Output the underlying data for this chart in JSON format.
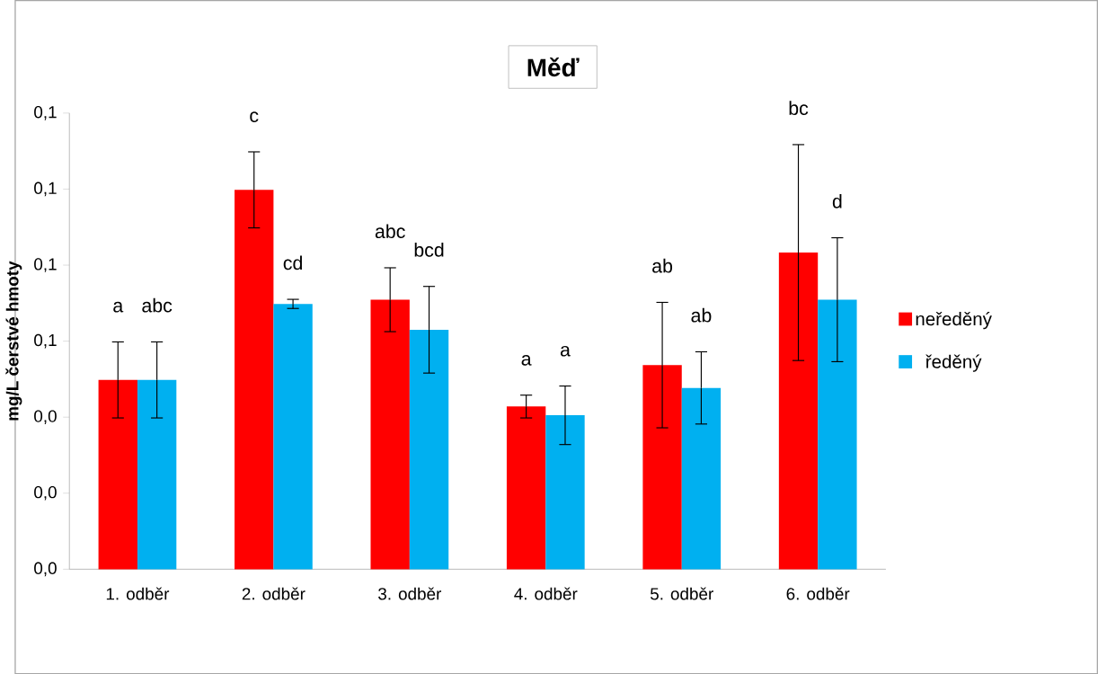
{
  "chart_data": {
    "type": "bar",
    "title": "Měď",
    "ylabel": "mg/L čerstvé hmoty",
    "categories": [
      "1. odběr",
      "2. odběr",
      "3. odběr",
      "4. odběr",
      "5. odběr",
      "6. odběr"
    ],
    "series": [
      {
        "name": "neředěný",
        "color": "#ff0000",
        "values": [
          0.0498,
          0.0998,
          0.0709,
          0.0428,
          0.0537,
          0.0833
        ],
        "errors": [
          0.01,
          0.01,
          0.0084,
          0.003,
          0.0165,
          0.0284
        ]
      },
      {
        "name": "ředěný",
        "color": "#00b0f0",
        "values": [
          0.0498,
          0.0698,
          0.063,
          0.0405,
          0.0477,
          0.0709
        ],
        "errors": [
          0.01,
          0.0012,
          0.0114,
          0.0077,
          0.0095,
          0.0163
        ]
      }
    ],
    "ylim": [
      0,
      0.12
    ],
    "yticks": [
      {
        "value": 0,
        "label": "0,0"
      },
      {
        "value": 0.02,
        "label": "0,0"
      },
      {
        "value": 0.04,
        "label": "0,0"
      },
      {
        "value": 0.06,
        "label": "0,1"
      },
      {
        "value": 0.08,
        "label": "0,1"
      },
      {
        "value": 0.1,
        "label": "0,1"
      },
      {
        "value": 0.12,
        "label": "0,1"
      }
    ],
    "annotations": [
      "a",
      "abc",
      "c",
      "cd",
      "abc",
      "bcd",
      "a",
      "a",
      "ab",
      "ab",
      "bc",
      "d"
    ],
    "grid": false,
    "legend": "right"
  }
}
